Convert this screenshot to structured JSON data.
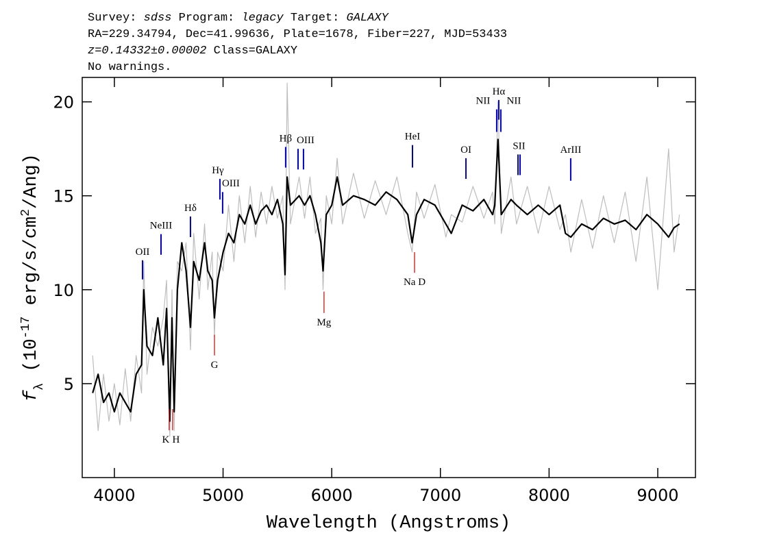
{
  "chart_data": {
    "type": "line",
    "header": [
      [
        {
          "text": "Survey: ",
          "italic": false
        },
        {
          "text": "sdss",
          "italic": true
        },
        {
          "text": " Program: ",
          "italic": false
        },
        {
          "text": "legacy",
          "italic": true
        },
        {
          "text": " Target: ",
          "italic": false
        },
        {
          "text": "GALAXY",
          "italic": true
        }
      ],
      [
        {
          "text": "RA=229.34794, Dec=41.99636, Plate=1678, Fiber=227, MJD=53433",
          "italic": false
        }
      ],
      [
        {
          "text": "z=0.14332±0.00002",
          "italic": true
        },
        {
          "text": " Class=GALAXY",
          "italic": false
        }
      ],
      [
        {
          "text": "No warnings.",
          "italic": false
        }
      ]
    ],
    "x_label": "Wavelength (Angstroms)",
    "y_label": [
      {
        "text": "f",
        "shift": "normal"
      },
      {
        "text": "λ",
        "shift": "sub"
      },
      {
        "text": " (10",
        "shift": "normal"
      },
      {
        "text": "-17",
        "shift": "super"
      },
      {
        "text": " erg/s/cm",
        "shift": "normal"
      },
      {
        "text": "2",
        "shift": "super"
      },
      {
        "text": "/Ang)",
        "shift": "normal"
      }
    ],
    "xlim": [
      3704,
      9347
    ],
    "ylim": [
      0,
      21.3
    ],
    "xticks": [
      4000,
      5000,
      6000,
      7000,
      8000,
      9000
    ],
    "yticks": [
      5,
      10,
      15,
      20
    ],
    "x": [
      3800,
      3850,
      3900,
      3950,
      4000,
      4050,
      4100,
      4150,
      4200,
      4250,
      4270,
      4300,
      4350,
      4400,
      4450,
      4480,
      4510,
      4530,
      4550,
      4580,
      4620,
      4660,
      4700,
      4730,
      4780,
      4830,
      4860,
      4900,
      4920,
      4950,
      5000,
      5050,
      5100,
      5150,
      5200,
      5250,
      5300,
      5350,
      5400,
      5450,
      5500,
      5550,
      5570,
      5590,
      5620,
      5700,
      5750,
      5800,
      5850,
      5900,
      5920,
      5950,
      6000,
      6050,
      6100,
      6200,
      6300,
      6400,
      6500,
      6600,
      6700,
      6740,
      6780,
      6850,
      6950,
      7050,
      7100,
      7200,
      7300,
      7400,
      7480,
      7500,
      7530,
      7560,
      7650,
      7700,
      7800,
      7900,
      8000,
      8100,
      8150,
      8200,
      8300,
      8400,
      8500,
      8600,
      8700,
      8800,
      8900,
      9000,
      9100,
      9150,
      9200
    ],
    "series": [
      {
        "color": "#bdbdbd",
        "width": 1.2,
        "values": [
          6.5,
          2.5,
          5.5,
          3.0,
          5.0,
          2.8,
          5.8,
          3.0,
          6.5,
          4.5,
          11.5,
          5.5,
          8.0,
          7.0,
          8.5,
          10.5,
          2.2,
          10.0,
          2.5,
          11.5,
          11.0,
          12.5,
          6.8,
          13.0,
          9.5,
          13.5,
          10.0,
          12.0,
          7.5,
          12.0,
          11.0,
          14.5,
          11.5,
          15.0,
          12.5,
          15.5,
          12.8,
          15.2,
          13.5,
          15.5,
          13.8,
          15.0,
          10.0,
          21.0,
          13.5,
          16.0,
          13.8,
          16.0,
          13.0,
          13.8,
          10.0,
          15.0,
          13.5,
          17.0,
          13.5,
          16.2,
          13.8,
          15.8,
          14.0,
          16.0,
          13.0,
          12.0,
          15.2,
          13.8,
          15.6,
          12.8,
          14.0,
          13.6,
          15.5,
          13.8,
          15.2,
          13.5,
          20.0,
          13.0,
          16.0,
          13.5,
          15.5,
          13.0,
          15.5,
          13.2,
          14.0,
          12.0,
          14.8,
          12.2,
          15.0,
          12.5,
          15.2,
          11.5,
          16.0,
          10.0,
          17.5,
          12.0,
          14.0
        ]
      },
      {
        "color": "#000000",
        "width": 2.2,
        "values": [
          4.5,
          5.5,
          4.0,
          4.5,
          3.5,
          4.5,
          4.0,
          3.5,
          5.5,
          6.0,
          10.0,
          7.0,
          6.5,
          8.5,
          6.0,
          9.0,
          3.0,
          8.5,
          3.5,
          10.0,
          12.5,
          11.0,
          8.0,
          11.5,
          10.5,
          12.5,
          11.0,
          10.5,
          8.5,
          10.5,
          12.0,
          13.0,
          12.5,
          14.0,
          13.5,
          14.5,
          13.5,
          14.2,
          14.5,
          14.0,
          14.8,
          13.5,
          10.8,
          16.0,
          14.5,
          15.0,
          14.5,
          15.0,
          14.0,
          12.5,
          11.0,
          14.0,
          14.5,
          16.0,
          14.5,
          15.0,
          14.8,
          14.5,
          15.2,
          14.8,
          14.0,
          12.5,
          14.0,
          14.8,
          14.5,
          13.5,
          13.0,
          14.5,
          14.2,
          14.8,
          14.0,
          14.5,
          18.0,
          14.0,
          14.8,
          14.5,
          14.0,
          14.5,
          14.0,
          14.5,
          13.0,
          12.8,
          13.5,
          13.2,
          13.8,
          13.5,
          13.7,
          13.2,
          14.0,
          13.5,
          12.8,
          13.3,
          13.5
        ]
      }
    ],
    "emission_lines": {
      "color": "#0000cc",
      "lines": [
        {
          "label": "OII",
          "x": [
            4259
          ],
          "y": [
            10.55,
            11.57
          ]
        },
        {
          "label": "NeIII",
          "x": [
            4429
          ],
          "y": [
            11.86,
            12.96
          ]
        },
        {
          "label": "Hδ",
          "x": [
            4700
          ],
          "y": [
            12.8,
            13.9
          ]
        },
        {
          "label": "Hγ",
          "x": [
            4971
          ],
          "y": [
            14.8,
            15.9
          ]
        },
        {
          "label": "OIII",
          "x": [
            4996
          ],
          "y": [
            14.05,
            15.2
          ]
        },
        {
          "label": "Hβ",
          "x": [
            5576
          ],
          "y": [
            16.5,
            17.6
          ]
        },
        {
          "label": "OIII",
          "x": [
            5690,
            5740
          ],
          "y": [
            16.4,
            17.5
          ]
        },
        {
          "label": "HeI",
          "x": [
            6743
          ],
          "y": [
            16.5,
            17.7
          ]
        },
        {
          "label": "OI",
          "x": [
            7235
          ],
          "y": [
            15.9,
            17.0
          ]
        },
        {
          "label": "NII",
          "x": [
            7518
          ],
          "y": [
            18.4,
            19.6
          ]
        },
        {
          "label": "Hα",
          "x": [
            7537
          ],
          "y": [
            19.05,
            20.1
          ]
        },
        {
          "label": "NII",
          "x": [
            7556
          ],
          "y": [
            18.4,
            19.6
          ]
        },
        {
          "label": "SII",
          "x": [
            7714,
            7733
          ],
          "y": [
            16.1,
            17.2
          ]
        },
        {
          "label": "ArIII",
          "x": [
            8199
          ],
          "y": [
            15.8,
            17.0
          ]
        }
      ]
    },
    "absorption_lines": {
      "color": "#cc0000",
      "lines": [
        {
          "label": "K",
          "x": [
            4504
          ],
          "y": [
            2.52,
            3.65
          ]
        },
        {
          "label": "H",
          "x": [
            4536
          ],
          "y": [
            2.52,
            3.65
          ]
        },
        {
          "label": "G",
          "x": [
            4921
          ],
          "y": [
            6.5,
            7.6
          ]
        },
        {
          "label": "Mg",
          "x": [
            5929
          ],
          "y": [
            8.76,
            9.9
          ]
        },
        {
          "label": "Na D",
          "x": [
            6762
          ],
          "y": [
            10.9,
            12.0
          ]
        }
      ]
    }
  }
}
